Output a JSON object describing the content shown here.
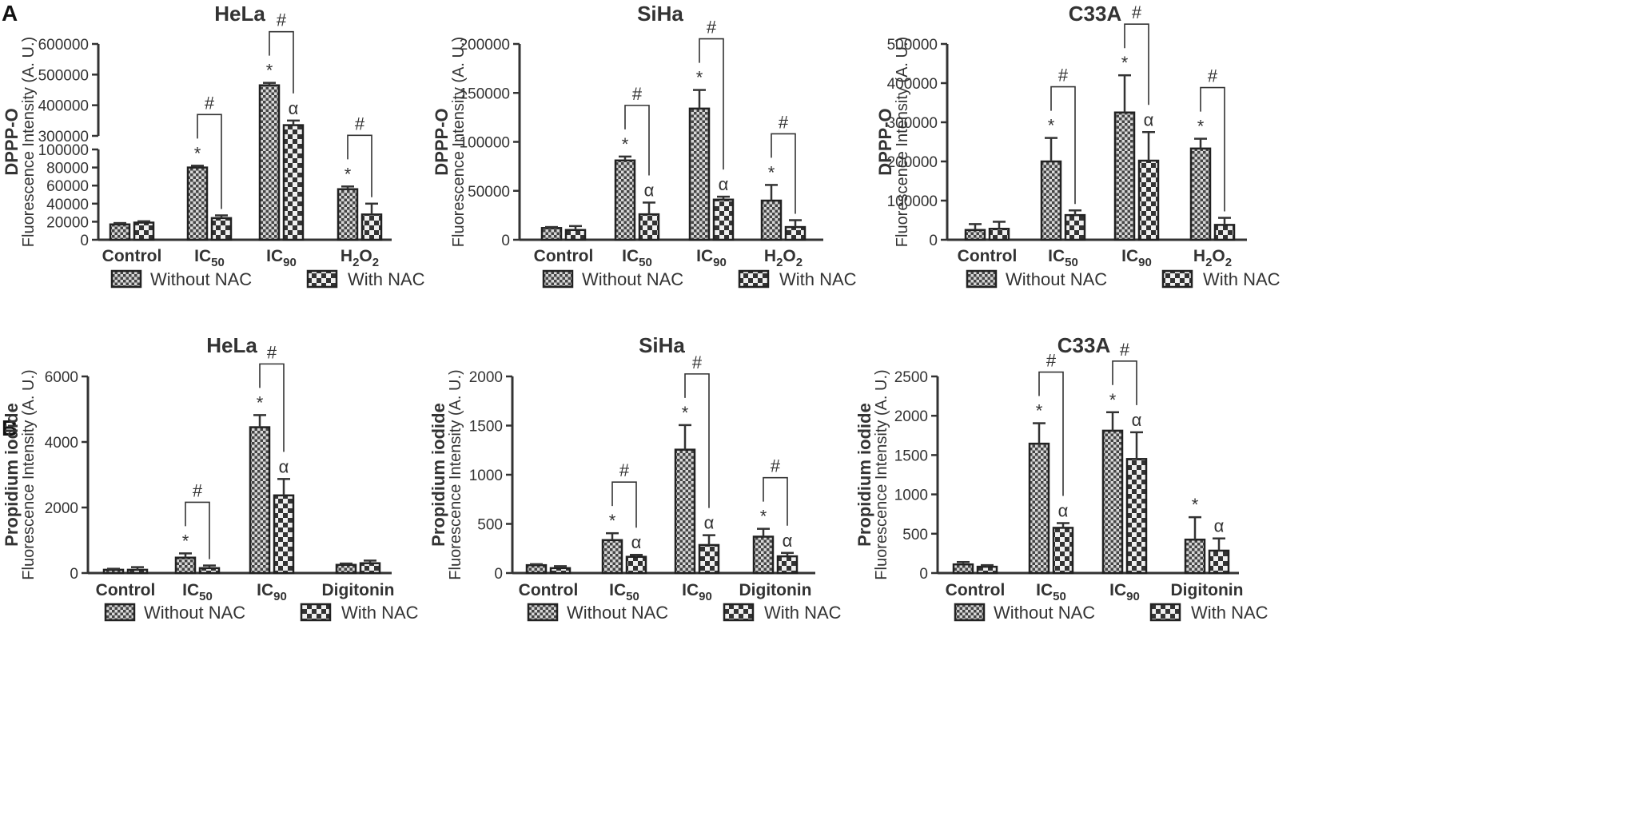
{
  "panel_labels": [
    "A",
    "B"
  ],
  "legend": {
    "without": "Without NAC",
    "with": "With NAC"
  },
  "chart_data": [
    {
      "panel": "A",
      "type": "bar",
      "title": "HeLa",
      "ylabel": "DPPP-O",
      "ylabel2": "Fluorescence Intensity (A. U.)",
      "categories": [
        [
          "Control",
          ""
        ],
        [
          "IC",
          "50"
        ],
        [
          "IC",
          "90"
        ],
        [
          "H",
          "2",
          "O",
          "2"
        ]
      ],
      "broken_axis": {
        "low": [
          0,
          100000
        ],
        "high": [
          300000,
          600000
        ]
      },
      "ticks_low": [
        0,
        20000,
        40000,
        60000,
        80000,
        100000
      ],
      "ticks_high": [
        300000,
        400000,
        500000,
        600000
      ],
      "series": [
        {
          "name": "Without NAC",
          "values": [
            17000,
            80000,
            465000,
            56000
          ],
          "errors": [
            1500,
            2000,
            8000,
            3000
          ],
          "marks": [
            "",
            "*",
            "*",
            "*"
          ]
        },
        {
          "name": "With NAC",
          "values": [
            19000,
            24000,
            335000,
            28000
          ],
          "errors": [
            1500,
            3000,
            15000,
            12000
          ],
          "marks": [
            "",
            "",
            "α",
            ""
          ]
        }
      ],
      "brackets": [
        {
          "cat": 1,
          "label": "#"
        },
        {
          "cat": 2,
          "label": "#"
        },
        {
          "cat": 3,
          "label": "#"
        }
      ]
    },
    {
      "panel": "A",
      "type": "bar",
      "title": "SiHa",
      "ylabel": "DPPP-O",
      "ylabel2": "Fluorescence Intensity (A. U.)",
      "categories": [
        [
          "Control",
          ""
        ],
        [
          "IC",
          "50"
        ],
        [
          "IC",
          "90"
        ],
        [
          "H",
          "2",
          "O",
          "2"
        ]
      ],
      "ylim": [
        0,
        200000
      ],
      "ticks": [
        0,
        50000,
        100000,
        150000,
        200000
      ],
      "series": [
        {
          "name": "Without NAC",
          "values": [
            12000,
            81000,
            134000,
            40000
          ],
          "errors": [
            1000,
            4000,
            19000,
            16000
          ],
          "marks": [
            "",
            "*",
            "*",
            "*"
          ]
        },
        {
          "name": "With NAC",
          "values": [
            10000,
            26000,
            41000,
            13000
          ],
          "errors": [
            4000,
            12000,
            3000,
            7000
          ],
          "marks": [
            "",
            "α",
            "α",
            ""
          ]
        }
      ],
      "brackets": [
        {
          "cat": 1,
          "label": "#"
        },
        {
          "cat": 2,
          "label": "#"
        },
        {
          "cat": 3,
          "label": "#"
        }
      ]
    },
    {
      "panel": "A",
      "type": "bar",
      "title": "C33A",
      "ylabel": "DPPP-O",
      "ylabel2": "Fluorescence Intensity (A. U.)",
      "categories": [
        [
          "Control",
          ""
        ],
        [
          "IC",
          "50"
        ],
        [
          "IC",
          "90"
        ],
        [
          "H",
          "2",
          "O",
          "2"
        ]
      ],
      "ylim": [
        0,
        500000
      ],
      "ticks": [
        0,
        100000,
        200000,
        300000,
        400000,
        500000
      ],
      "series": [
        {
          "name": "Without NAC",
          "values": [
            25000,
            200000,
            325000,
            233000
          ],
          "errors": [
            15000,
            60000,
            95000,
            25000
          ],
          "marks": [
            "",
            "*",
            "*",
            "*"
          ]
        },
        {
          "name": "With NAC",
          "values": [
            28000,
            63000,
            202000,
            38000
          ],
          "errors": [
            18000,
            12000,
            73000,
            18000
          ],
          "marks": [
            "",
            "",
            "α",
            ""
          ]
        }
      ],
      "brackets": [
        {
          "cat": 1,
          "label": "#"
        },
        {
          "cat": 2,
          "label": "#"
        },
        {
          "cat": 3,
          "label": "#"
        }
      ]
    },
    {
      "panel": "B",
      "type": "bar",
      "title": "HeLa",
      "ylabel": "Propidium iodide",
      "ylabel2": "Fluorescence Intensity (A. U.)",
      "categories": [
        [
          "Control",
          ""
        ],
        [
          "IC",
          "50"
        ],
        [
          "IC",
          "90"
        ],
        [
          "Digitonin",
          ""
        ]
      ],
      "ylim": [
        0,
        6000
      ],
      "ticks": [
        0,
        2000,
        4000,
        6000
      ],
      "series": [
        {
          "name": "Without NAC",
          "values": [
            100,
            470,
            4450,
            250
          ],
          "errors": [
            30,
            130,
            370,
            40
          ],
          "marks": [
            "",
            "*",
            "*",
            ""
          ]
        },
        {
          "name": "With NAC",
          "values": [
            100,
            150,
            2370,
            300
          ],
          "errors": [
            80,
            80,
            500,
            80
          ],
          "marks": [
            "",
            "",
            "α",
            ""
          ]
        }
      ],
      "brackets": [
        {
          "cat": 1,
          "label": "#"
        },
        {
          "cat": 2,
          "label": "#"
        }
      ]
    },
    {
      "panel": "B",
      "type": "bar",
      "title": "SiHa",
      "ylabel": "Propidium iodide",
      "ylabel2": "Fluorescence Intensity (A. U.)",
      "categories": [
        [
          "Control",
          ""
        ],
        [
          "IC",
          "50"
        ],
        [
          "IC",
          "90"
        ],
        [
          "Digitonin",
          ""
        ]
      ],
      "ylim": [
        0,
        2000
      ],
      "ticks": [
        0,
        500,
        1000,
        1500,
        2000
      ],
      "series": [
        {
          "name": "Without NAC",
          "values": [
            80,
            335,
            1255,
            370
          ],
          "errors": [
            10,
            70,
            250,
            80
          ],
          "marks": [
            "",
            "*",
            "*",
            "*"
          ]
        },
        {
          "name": "With NAC",
          "values": [
            50,
            165,
            285,
            170
          ],
          "errors": [
            20,
            20,
            100,
            35
          ],
          "marks": [
            "",
            "α",
            "α",
            "α"
          ]
        }
      ],
      "brackets": [
        {
          "cat": 1,
          "label": "#"
        },
        {
          "cat": 2,
          "label": "#"
        },
        {
          "cat": 3,
          "label": "#"
        }
      ]
    },
    {
      "panel": "B",
      "type": "bar",
      "title": "C33A",
      "ylabel": "Propidium iodide",
      "ylabel2": "Fluorescence Intensity (A. U.)",
      "categories": [
        [
          "Control",
          ""
        ],
        [
          "IC",
          "50"
        ],
        [
          "IC",
          "90"
        ],
        [
          "Digitonin",
          ""
        ]
      ],
      "ylim": [
        0,
        2500
      ],
      "ticks": [
        0,
        500,
        1000,
        1500,
        2000,
        2500
      ],
      "series": [
        {
          "name": "Without NAC",
          "values": [
            110,
            1645,
            1810,
            425
          ],
          "errors": [
            30,
            260,
            235,
            285
          ],
          "marks": [
            "",
            "*",
            "*",
            "*"
          ]
        },
        {
          "name": "With NAC",
          "values": [
            80,
            575,
            1450,
            285
          ],
          "errors": [
            20,
            60,
            340,
            155
          ],
          "marks": [
            "",
            "α",
            "α",
            "α"
          ]
        }
      ],
      "brackets": [
        {
          "cat": 1,
          "label": "#"
        },
        {
          "cat": 2,
          "label": "#"
        }
      ]
    }
  ]
}
